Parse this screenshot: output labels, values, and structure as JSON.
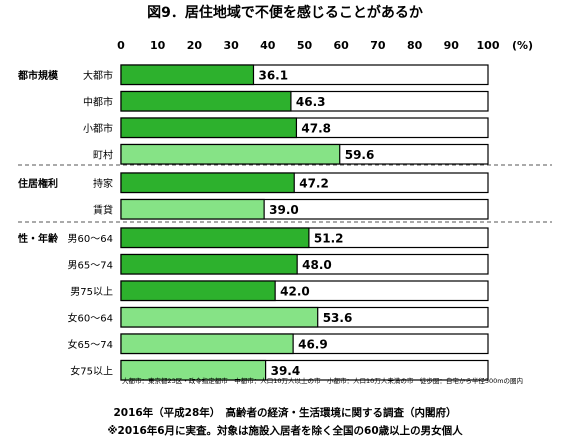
{
  "chart_data": {
    "type": "bar",
    "orientation": "horizontal",
    "title": "図9．居住地域で不便を感じることがあるか",
    "unit": "(%)",
    "xlim": [
      0,
      100
    ],
    "xticks": [
      "0",
      "10",
      "20",
      "30",
      "40",
      "50",
      "60",
      "70",
      "80",
      "90",
      "100"
    ],
    "groups": [
      {
        "label": "都市規模",
        "categories": [
          "大都市",
          "中都市",
          "小都市",
          "町村"
        ],
        "values": [
          36.1,
          46.3,
          47.8,
          59.6
        ]
      },
      {
        "label": "住居権利",
        "categories": [
          "持家",
          "賃貸"
        ],
        "values": [
          47.2,
          39.0
        ]
      },
      {
        "label": "性・年齢",
        "categories": [
          "男60～64",
          "男65～74",
          "男75以上",
          "女60～64",
          "女65～74",
          "女75以上"
        ],
        "values": [
          51.2,
          48.0,
          42.0,
          53.6,
          46.9,
          39.4
        ]
      }
    ],
    "value_labels": [
      "36.1",
      "46.3",
      "47.8",
      "59.6",
      "47.2",
      "39.0",
      "51.2",
      "48.0",
      "42.0",
      "53.6",
      "46.9",
      "39.4"
    ],
    "colors": {
      "dark": "#2db12d",
      "light": "#86e386",
      "border": "#000000",
      "divider": "#555555"
    },
    "bar_tone": [
      "dark",
      "dark",
      "dark",
      "light",
      "dark",
      "light",
      "dark",
      "dark",
      "dark",
      "light",
      "light",
      "light"
    ]
  },
  "note": "大都市：東京都23区・政令指定都市　中都市：人口10万人以上の市　小都市：人口10万人未満の市　徒歩圏：自宅から半径500mの圏内",
  "footer": {
    "line1": "2016年（平成28年）　高齢者の経済・生活環境に関する調査（内閣府）",
    "line2": "※2016年6月に実査。対象は施設入居者を除く全国の60歳以上の男女個人"
  }
}
